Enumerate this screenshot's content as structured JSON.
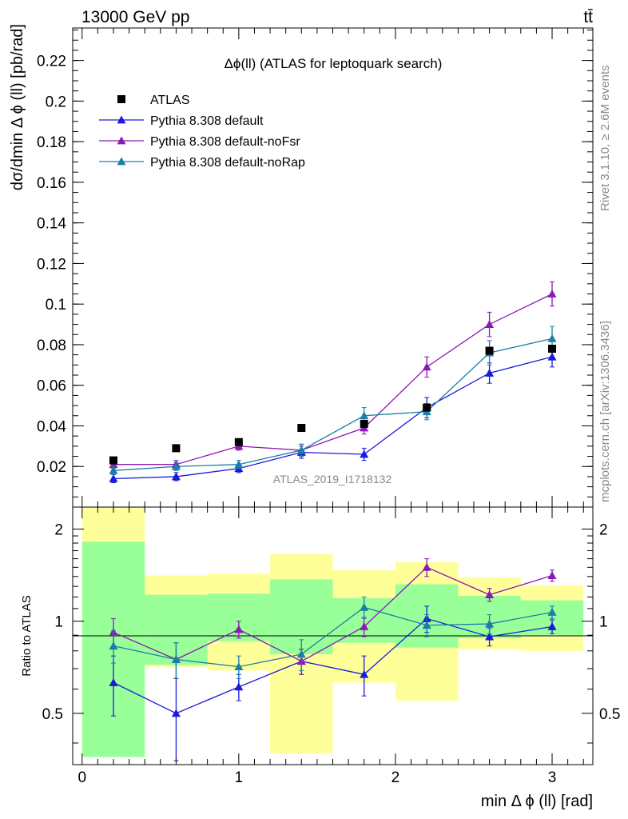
{
  "header": {
    "energy_label": "13000 GeV pp",
    "process_label": "tt̄"
  },
  "side_text": {
    "rivet": "Rivet 3.1.10, ≥ 2.6M events",
    "mcplots": "mcplots.cern.ch [arXiv:1306.3436]"
  },
  "chart_data": [
    {
      "type": "line",
      "title": "Δϕ(ll) (ATLAS for leptoquark search)",
      "xlabel": "min Δ ϕ (ll) [rad]",
      "ylabel": "dσ/dmin Δ ϕ (ll) [pb/rad]",
      "watermark": "ATLAS_2019_I1718132",
      "xlim": [
        -0.06,
        3.26
      ],
      "ylim": [
        0,
        0.236
      ],
      "x_ticks": [
        0,
        1,
        2,
        3
      ],
      "y_ticks": [
        0.02,
        0.04,
        0.06,
        0.08,
        0.1,
        0.12,
        0.14,
        0.16,
        0.18,
        0.2,
        0.22
      ],
      "y_tick_labels": [
        "0.02",
        "0.04",
        "0.06",
        "0.08",
        "0.1",
        "0.12",
        "0.14",
        "0.16",
        "0.18",
        "0.2",
        "0.22"
      ],
      "x": [
        0.2,
        0.6,
        1.0,
        1.4,
        1.8,
        2.2,
        2.6,
        3.0
      ],
      "data": {
        "name": "ATLAS",
        "color": "#000000",
        "marker": "square",
        "values": [
          0.023,
          0.029,
          0.032,
          0.039,
          0.041,
          0.049,
          0.077,
          0.078
        ]
      },
      "series": [
        {
          "name": "Pythia 8.308 default",
          "color": "#1a1adb",
          "values": [
            0.014,
            0.015,
            0.019,
            0.027,
            0.026,
            0.049,
            0.066,
            0.074
          ],
          "errors": [
            0.002,
            0.002,
            0.002,
            0.003,
            0.003,
            0.005,
            0.005,
            0.005
          ]
        },
        {
          "name": "Pythia 8.308 default-noFsr",
          "color": "#8b1ab4",
          "values": [
            0.021,
            0.021,
            0.03,
            0.028,
            0.039,
            0.069,
            0.09,
            0.105
          ],
          "errors": [
            0.002,
            0.002,
            0.002,
            0.003,
            0.003,
            0.005,
            0.006,
            0.006
          ]
        },
        {
          "name": "Pythia 8.308 default-noRap",
          "color": "#1a7fa6",
          "values": [
            0.018,
            0.02,
            0.021,
            0.028,
            0.045,
            0.047,
            0.076,
            0.083
          ],
          "errors": [
            0.002,
            0.002,
            0.002,
            0.003,
            0.004,
            0.004,
            0.006,
            0.006
          ]
        }
      ]
    },
    {
      "type": "line",
      "ylabel": "Ratio to ATLAS",
      "ylim": [
        0.34,
        2.36
      ],
      "y_ticks": [
        0.5,
        1,
        2
      ],
      "y_tick_labels": [
        "0.5",
        "1",
        "2"
      ],
      "x_ticks": [
        0,
        1,
        2,
        3
      ],
      "x_tick_labels": [
        "0",
        "1",
        "2",
        "3"
      ],
      "bin_edges": [
        0,
        0.4,
        0.8,
        1.2,
        1.6,
        2.0,
        2.4,
        2.8,
        3.2
      ],
      "band_yellow": [
        [
          0.36,
          2.36
        ],
        [
          0.71,
          1.41
        ],
        [
          0.69,
          1.43
        ],
        [
          0.37,
          1.66
        ],
        [
          0.63,
          1.47
        ],
        [
          0.55,
          1.56
        ],
        [
          0.81,
          1.39
        ],
        [
          0.8,
          1.31
        ]
      ],
      "band_green": [
        [
          0.36,
          1.82
        ],
        [
          0.72,
          1.22
        ],
        [
          0.86,
          1.23
        ],
        [
          0.78,
          1.37
        ],
        [
          0.85,
          1.19
        ],
        [
          0.82,
          1.32
        ],
        [
          0.88,
          1.21
        ],
        [
          0.9,
          1.17
        ]
      ],
      "x": [
        0.2,
        0.6,
        1.0,
        1.4,
        1.8,
        2.2,
        2.6,
        3.0
      ],
      "series": [
        {
          "name": "Pythia 8.308 default",
          "color": "#1a1adb",
          "values": [
            0.63,
            0.5,
            0.61,
            0.74,
            0.67,
            1.02,
            0.89,
            0.96
          ],
          "errors": [
            0.14,
            0.15,
            0.06,
            0.07,
            0.1,
            0.1,
            0.06,
            0.05
          ]
        },
        {
          "name": "Pythia 8.308 default-noFsr",
          "color": "#8b1ab4",
          "values": [
            0.92,
            0.75,
            0.94,
            0.74,
            0.96,
            1.5,
            1.22,
            1.41
          ],
          "errors": [
            0.1,
            0.1,
            0.06,
            0.07,
            0.07,
            0.1,
            0.06,
            0.06
          ]
        },
        {
          "name": "Pythia 8.308 default-noRap",
          "color": "#1a7fa6",
          "values": [
            0.83,
            0.75,
            0.71,
            0.78,
            1.11,
            0.97,
            0.98,
            1.07
          ],
          "errors": [
            0.1,
            0.1,
            0.06,
            0.09,
            0.09,
            0.08,
            0.07,
            0.05
          ]
        }
      ]
    }
  ]
}
